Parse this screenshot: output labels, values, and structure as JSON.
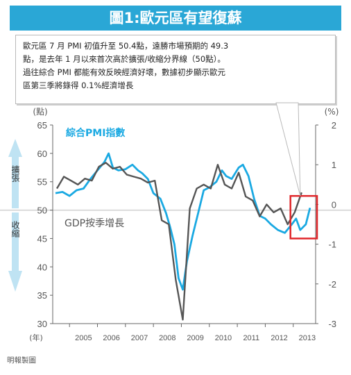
{
  "banner": {
    "title": "圖1:歐元區有望復蘇"
  },
  "note": {
    "text": "歐元區 7 月 PMI 初值升至 50.4點，遠勝市場預期的 49.3\n點，是去年 1 月以來首次高於擴張/收縮分界線（50點）。\n過往綜合 PMI 都能有效反映經濟好壞，數據初步顯示歐元\n區第三季將錄得 0.1%經濟增長"
  },
  "credit": "明報製圖",
  "colors": {
    "pmi": "#1aa9e2",
    "gdp": "#555555",
    "banner": "#2aa7d6",
    "highlight": "#e0262a"
  },
  "chart_data": {
    "type": "line",
    "left_axis": {
      "unit": "(點)",
      "ylim": [
        30,
        65
      ],
      "ticks": [
        30,
        35,
        40,
        45,
        50,
        55,
        60,
        65
      ]
    },
    "right_axis": {
      "unit": "(%)",
      "ylim": [
        -3,
        2
      ],
      "ticks": [
        -3,
        -2,
        -1,
        0,
        1,
        2
      ]
    },
    "x_axis": {
      "unit": "(年)",
      "ticks": [
        "2005",
        "2006",
        "2007",
        "2008",
        "2009",
        "2010",
        "2011",
        "2012",
        "2013"
      ],
      "range": [
        2004.4,
        2013.8
      ]
    },
    "band_labels": {
      "expand": "擴張",
      "contract": "收縮"
    },
    "series": [
      {
        "name": "綜合PMI指數",
        "axis": "left",
        "points": [
          [
            2004.5,
            53.0
          ],
          [
            2004.75,
            53.2
          ],
          [
            2005.0,
            52.5
          ],
          [
            2005.25,
            53.5
          ],
          [
            2005.5,
            53.8
          ],
          [
            2005.75,
            55.5
          ],
          [
            2006.0,
            57.0
          ],
          [
            2006.25,
            58.5
          ],
          [
            2006.4,
            60.0
          ],
          [
            2006.55,
            57.5
          ],
          [
            2006.75,
            57.0
          ],
          [
            2007.0,
            57.2
          ],
          [
            2007.25,
            58.0
          ],
          [
            2007.45,
            57.0
          ],
          [
            2007.6,
            56.5
          ],
          [
            2007.8,
            55.5
          ],
          [
            2008.0,
            53.0
          ],
          [
            2008.25,
            52.0
          ],
          [
            2008.45,
            49.5
          ],
          [
            2008.6,
            47.0
          ],
          [
            2008.75,
            44.0
          ],
          [
            2008.9,
            38.0
          ],
          [
            2009.05,
            36.0
          ],
          [
            2009.2,
            41.0
          ],
          [
            2009.4,
            45.5
          ],
          [
            2009.6,
            49.5
          ],
          [
            2009.8,
            53.5
          ],
          [
            2010.0,
            54.0
          ],
          [
            2010.25,
            55.0
          ],
          [
            2010.45,
            57.0
          ],
          [
            2010.6,
            56.0
          ],
          [
            2010.8,
            55.5
          ],
          [
            2011.05,
            57.5
          ],
          [
            2011.2,
            58.0
          ],
          [
            2011.4,
            56.0
          ],
          [
            2011.6,
            52.0
          ],
          [
            2011.8,
            49.0
          ],
          [
            2012.0,
            48.5
          ],
          [
            2012.2,
            47.5
          ],
          [
            2012.45,
            46.5
          ],
          [
            2012.7,
            46.0
          ],
          [
            2012.95,
            47.5
          ],
          [
            2013.1,
            48.5
          ],
          [
            2013.25,
            46.5
          ],
          [
            2013.45,
            47.5
          ],
          [
            2013.6,
            50.4
          ]
        ]
      },
      {
        "name": "GDP按季增長",
        "axis": "right",
        "points": [
          [
            2004.55,
            0.4
          ],
          [
            2004.8,
            0.7
          ],
          [
            2005.05,
            0.6
          ],
          [
            2005.3,
            0.5
          ],
          [
            2005.55,
            0.65
          ],
          [
            2005.8,
            0.6
          ],
          [
            2006.05,
            0.95
          ],
          [
            2006.3,
            1.05
          ],
          [
            2006.55,
            0.9
          ],
          [
            2006.8,
            0.95
          ],
          [
            2007.05,
            0.75
          ],
          [
            2007.3,
            0.7
          ],
          [
            2007.55,
            0.65
          ],
          [
            2007.8,
            0.55
          ],
          [
            2008.05,
            0.6
          ],
          [
            2008.3,
            -0.4
          ],
          [
            2008.55,
            -0.5
          ],
          [
            2008.8,
            -1.9
          ],
          [
            2009.05,
            -2.9
          ],
          [
            2009.3,
            -0.1
          ],
          [
            2009.55,
            0.4
          ],
          [
            2009.8,
            0.5
          ],
          [
            2010.05,
            0.4
          ],
          [
            2010.3,
            1.0
          ],
          [
            2010.55,
            0.5
          ],
          [
            2010.8,
            0.4
          ],
          [
            2011.05,
            0.8
          ],
          [
            2011.3,
            0.2
          ],
          [
            2011.55,
            0.1
          ],
          [
            2011.8,
            -0.3
          ],
          [
            2012.05,
            0.0
          ],
          [
            2012.3,
            -0.2
          ],
          [
            2012.55,
            -0.1
          ],
          [
            2012.8,
            -0.5
          ],
          [
            2013.05,
            -0.2
          ],
          [
            2013.3,
            0.3
          ]
        ]
      }
    ],
    "highlight_box": {
      "x_range": [
        2012.9,
        2013.85
      ],
      "y_range": [
        45,
        52.5
      ]
    }
  }
}
